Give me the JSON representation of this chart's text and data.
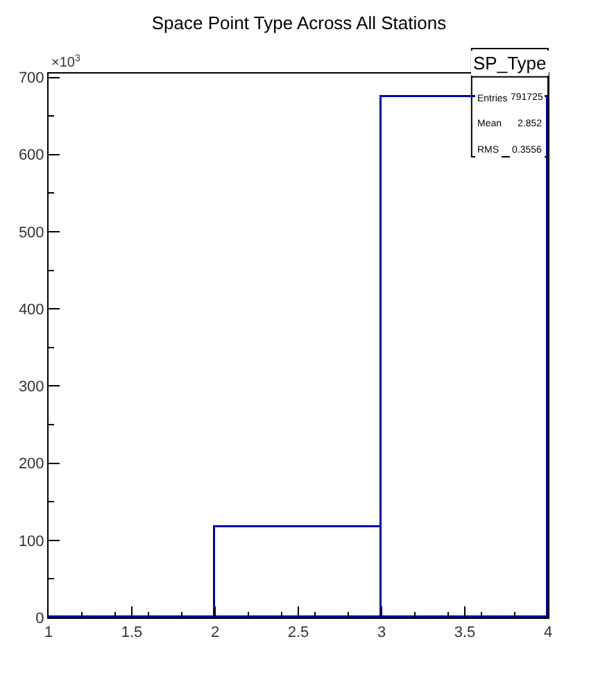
{
  "chart_data": {
    "type": "histogram",
    "title": "Space Point Type Across All Stations",
    "bins": [
      1,
      2,
      3,
      4
    ],
    "values": [
      0,
      117,
      674
    ],
    "color": "#0000aa",
    "xlim": [
      1,
      4
    ],
    "xticks": [
      1,
      1.5,
      2,
      2.5,
      3,
      3.5,
      4
    ],
    "ylim": [
      0,
      705
    ],
    "yticks": [
      0,
      100,
      200,
      300,
      400,
      500,
      600,
      700
    ],
    "annotations": [
      "×10$^{3}$",
      "SP_Type",
      "Entries",
      "791725",
      "Mean",
      "2.852",
      "RMS",
      "0.3556"
    ]
  }
}
